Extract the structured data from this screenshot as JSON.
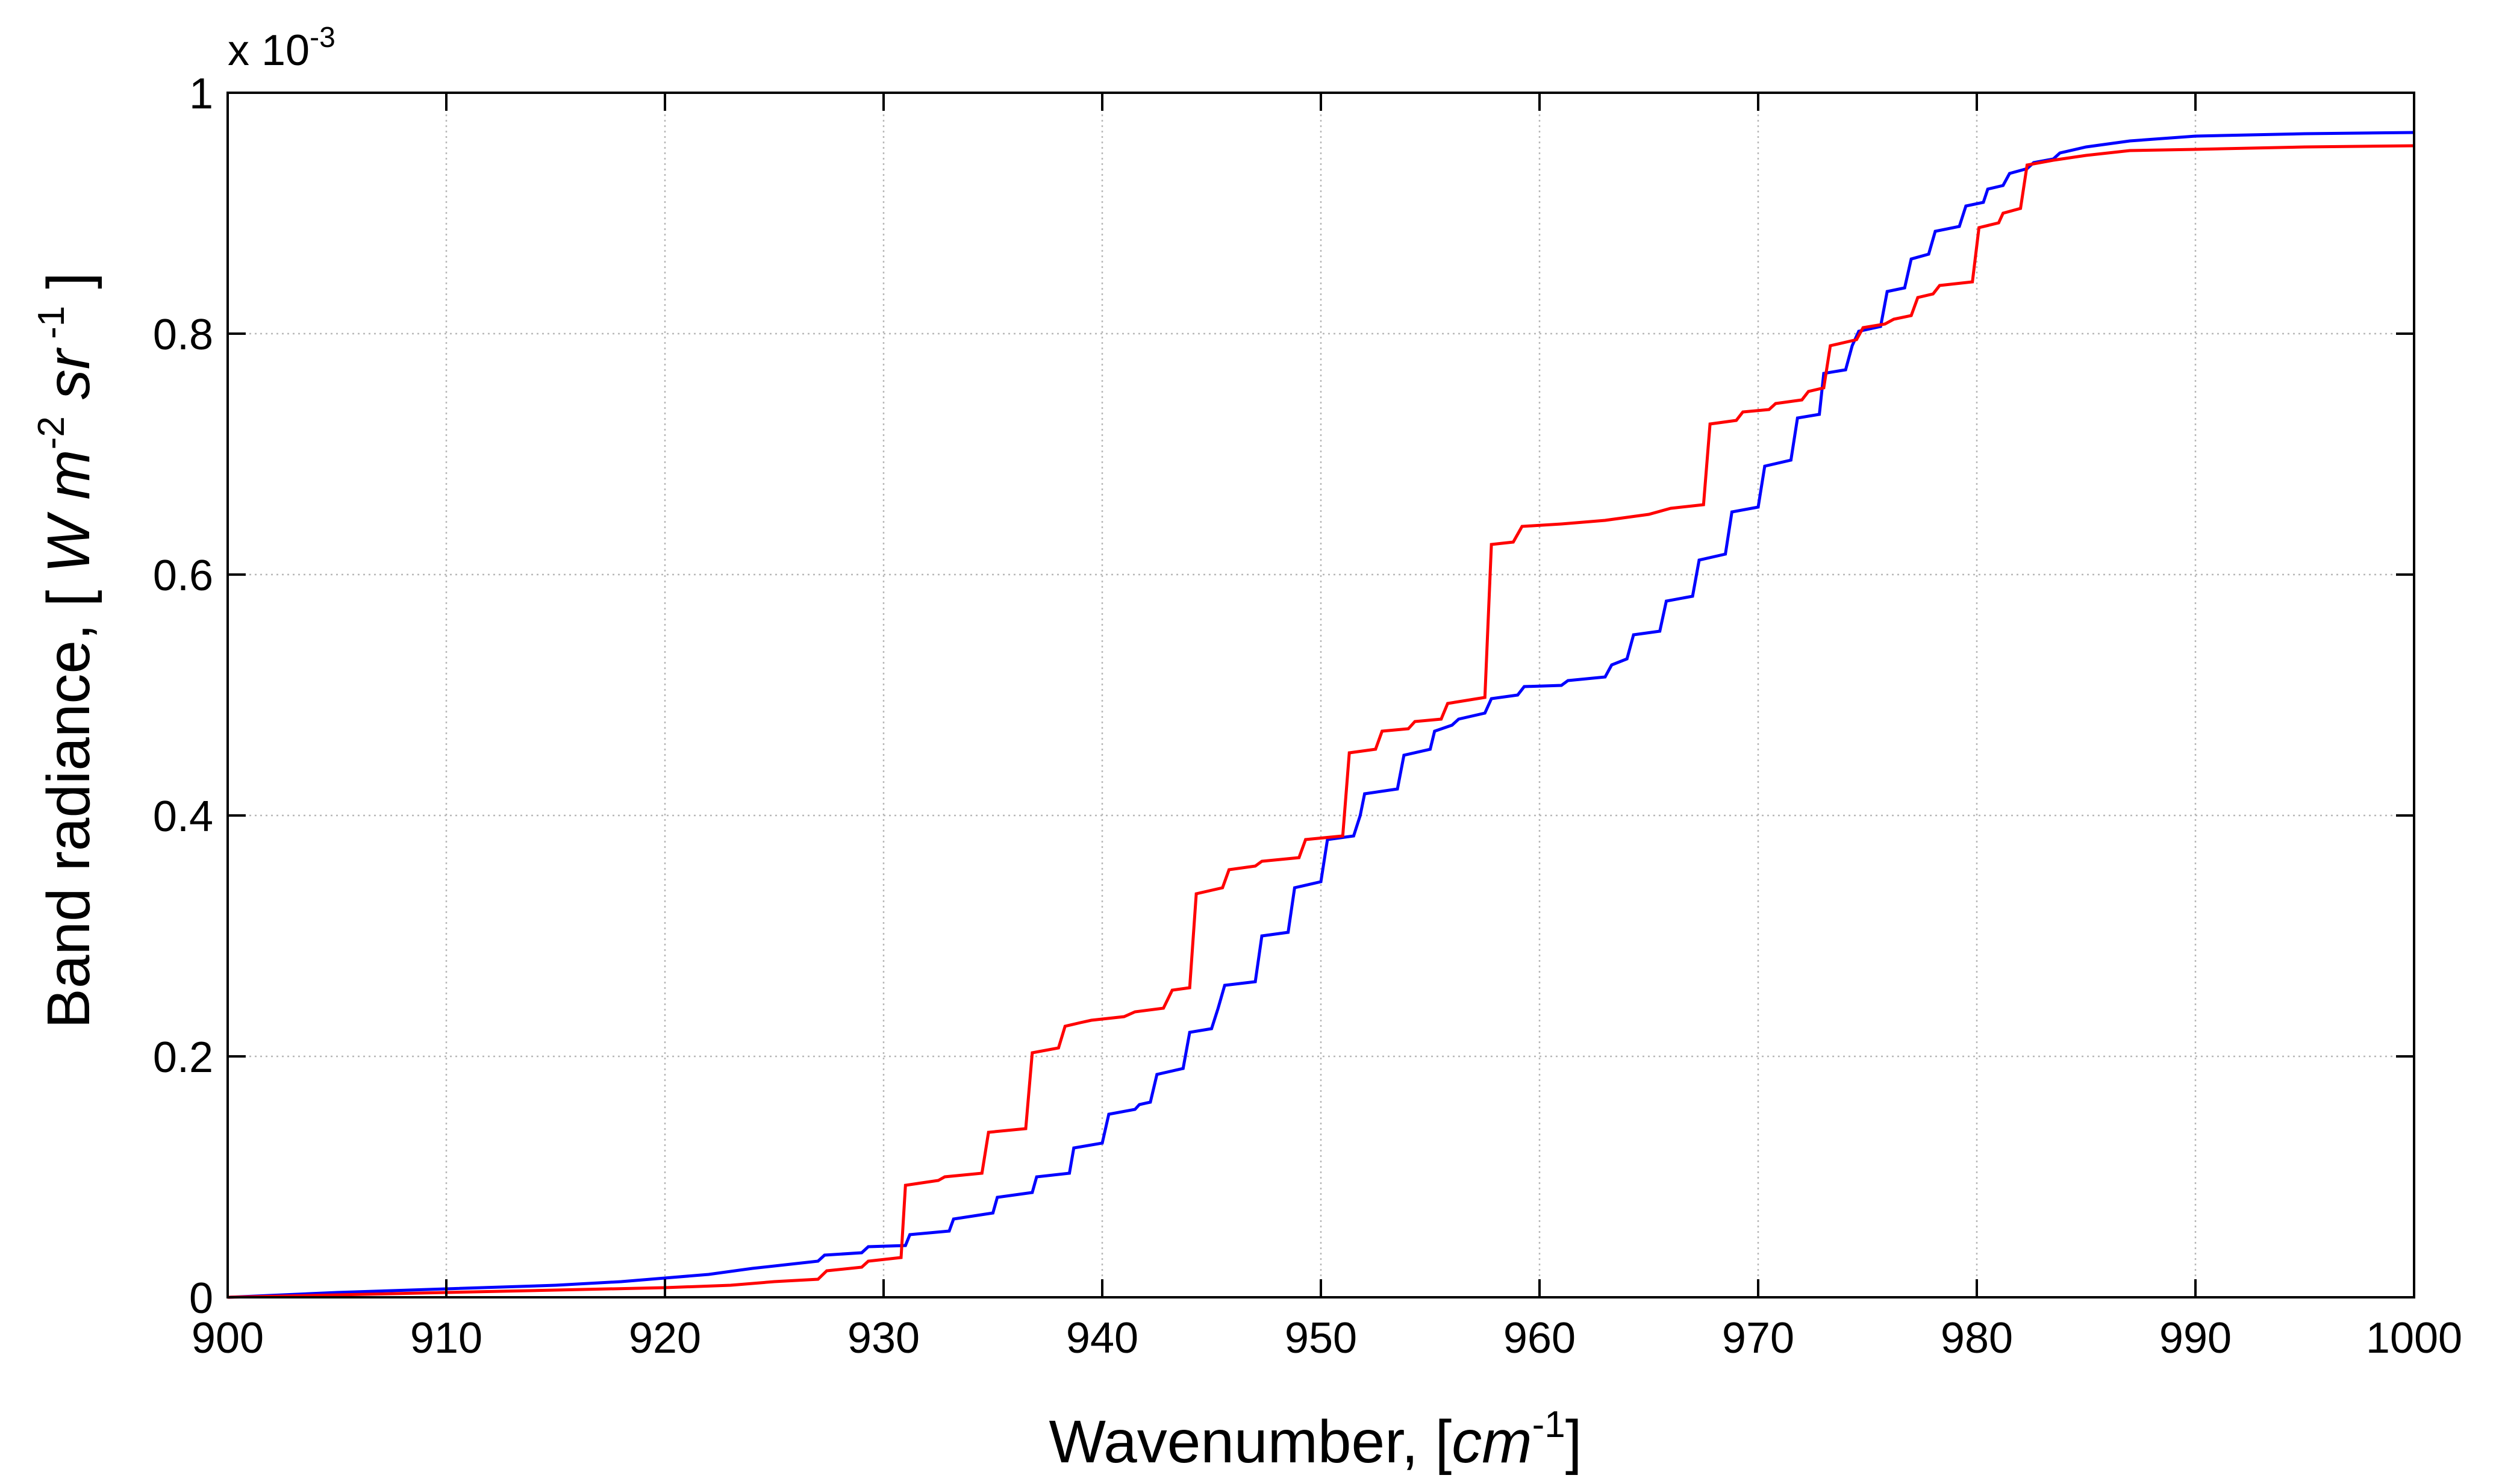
{
  "chart_data": {
    "type": "line",
    "title": "",
    "xlabel": {
      "prefix": "Wavenumber, [",
      "unit": "cm",
      "unit_exp": "-1",
      "suffix": "]"
    },
    "ylabel": {
      "prefix": "Band radiance, [ ",
      "unit1": "W",
      "unit2": "m",
      "unit2_exp": "-2",
      "unit3": "sr",
      "unit3_exp": "-1",
      "suffix": " ]"
    },
    "y_multiplier": {
      "prefix": "x 10",
      "exp": "-3"
    },
    "xlim": [
      900,
      1000
    ],
    "ylim": [
      0,
      1
    ],
    "xticks": [
      900,
      910,
      920,
      930,
      940,
      950,
      960,
      970,
      980,
      990,
      1000
    ],
    "xtick_labels": [
      "900",
      "910",
      "920",
      "930",
      "940",
      "950",
      "960",
      "970",
      "980",
      "990",
      "1000"
    ],
    "yticks": [
      0,
      0.2,
      0.4,
      0.6,
      0.8,
      1
    ],
    "ytick_labels": [
      "0",
      "0.2",
      "0.4",
      "0.6",
      "0.8",
      "1"
    ],
    "grid": true,
    "series": [
      {
        "color": "#0000ff",
        "points": [
          [
            900,
            0
          ],
          [
            905,
            0.004
          ],
          [
            910,
            0.007
          ],
          [
            915,
            0.01
          ],
          [
            918,
            0.013
          ],
          [
            920,
            0.016
          ],
          [
            922,
            0.019
          ],
          [
            924,
            0.024
          ],
          [
            926,
            0.028
          ],
          [
            927,
            0.03
          ],
          [
            927.3,
            0.035
          ],
          [
            929,
            0.037
          ],
          [
            929.3,
            0.042
          ],
          [
            931,
            0.043
          ],
          [
            931.2,
            0.052
          ],
          [
            933,
            0.055
          ],
          [
            933.2,
            0.065
          ],
          [
            935,
            0.07
          ],
          [
            935.2,
            0.083
          ],
          [
            936.8,
            0.087
          ],
          [
            937,
            0.1
          ],
          [
            938.5,
            0.103
          ],
          [
            938.7,
            0.124
          ],
          [
            940,
            0.128
          ],
          [
            940.3,
            0.152
          ],
          [
            941.5,
            0.156
          ],
          [
            941.7,
            0.16
          ],
          [
            942.2,
            0.162
          ],
          [
            942.5,
            0.185
          ],
          [
            943.7,
            0.19
          ],
          [
            944,
            0.22
          ],
          [
            945,
            0.223
          ],
          [
            945.3,
            0.24
          ],
          [
            945.6,
            0.259
          ],
          [
            947,
            0.262
          ],
          [
            947.3,
            0.3
          ],
          [
            948.5,
            0.303
          ],
          [
            948.8,
            0.34
          ],
          [
            950,
            0.345
          ],
          [
            950.3,
            0.38
          ],
          [
            951.5,
            0.383
          ],
          [
            951.8,
            0.4
          ],
          [
            952,
            0.418
          ],
          [
            953.5,
            0.422
          ],
          [
            953.8,
            0.45
          ],
          [
            955,
            0.455
          ],
          [
            955.2,
            0.47
          ],
          [
            956,
            0.475
          ],
          [
            956.3,
            0.48
          ],
          [
            957.5,
            0.485
          ],
          [
            957.8,
            0.497
          ],
          [
            959,
            0.5
          ],
          [
            959.3,
            0.507
          ],
          [
            961,
            0.508
          ],
          [
            961.3,
            0.512
          ],
          [
            963,
            0.515
          ],
          [
            963.3,
            0.525
          ],
          [
            964,
            0.53
          ],
          [
            964.3,
            0.55
          ],
          [
            965.5,
            0.553
          ],
          [
            965.8,
            0.578
          ],
          [
            967,
            0.582
          ],
          [
            967.3,
            0.612
          ],
          [
            968.5,
            0.617
          ],
          [
            968.8,
            0.652
          ],
          [
            970,
            0.656
          ],
          [
            970.3,
            0.69
          ],
          [
            971.5,
            0.695
          ],
          [
            971.8,
            0.73
          ],
          [
            972.8,
            0.733
          ],
          [
            973,
            0.767
          ],
          [
            974,
            0.77
          ],
          [
            974.3,
            0.79
          ],
          [
            974.6,
            0.802
          ],
          [
            975.6,
            0.806
          ],
          [
            975.9,
            0.835
          ],
          [
            976.7,
            0.838
          ],
          [
            977,
            0.862
          ],
          [
            977.8,
            0.866
          ],
          [
            978.1,
            0.885
          ],
          [
            979.2,
            0.889
          ],
          [
            979.5,
            0.906
          ],
          [
            980.3,
            0.909
          ],
          [
            980.5,
            0.92
          ],
          [
            981.2,
            0.923
          ],
          [
            981.5,
            0.933
          ],
          [
            982.3,
            0.937
          ],
          [
            982.6,
            0.942
          ],
          [
            983.5,
            0.945
          ],
          [
            983.8,
            0.95
          ],
          [
            985,
            0.955
          ],
          [
            987,
            0.96
          ],
          [
            990,
            0.964
          ],
          [
            995,
            0.966
          ],
          [
            1000,
            0.967
          ]
        ]
      },
      {
        "color": "#ff0000",
        "points": [
          [
            900,
            0
          ],
          [
            905,
            0.002
          ],
          [
            910,
            0.004
          ],
          [
            915,
            0.006
          ],
          [
            920,
            0.008
          ],
          [
            923,
            0.01
          ],
          [
            925,
            0.013
          ],
          [
            927,
            0.015
          ],
          [
            927.4,
            0.022
          ],
          [
            929,
            0.025
          ],
          [
            929.3,
            0.03
          ],
          [
            930.8,
            0.033
          ],
          [
            931,
            0.093
          ],
          [
            932.5,
            0.097
          ],
          [
            932.8,
            0.1
          ],
          [
            934.5,
            0.103
          ],
          [
            934.8,
            0.137
          ],
          [
            936.5,
            0.14
          ],
          [
            936.8,
            0.203
          ],
          [
            938,
            0.207
          ],
          [
            938.3,
            0.225
          ],
          [
            939,
            0.228
          ],
          [
            939.5,
            0.23
          ],
          [
            941,
            0.233
          ],
          [
            941.5,
            0.237
          ],
          [
            942.8,
            0.24
          ],
          [
            943.2,
            0.255
          ],
          [
            944,
            0.257
          ],
          [
            944.3,
            0.335
          ],
          [
            945.5,
            0.34
          ],
          [
            945.8,
            0.355
          ],
          [
            947,
            0.358
          ],
          [
            947.3,
            0.362
          ],
          [
            949,
            0.365
          ],
          [
            949.3,
            0.38
          ],
          [
            951,
            0.383
          ],
          [
            951.3,
            0.452
          ],
          [
            952.5,
            0.455
          ],
          [
            952.8,
            0.47
          ],
          [
            954,
            0.472
          ],
          [
            954.3,
            0.478
          ],
          [
            955.5,
            0.48
          ],
          [
            955.8,
            0.493
          ],
          [
            957.5,
            0.498
          ],
          [
            957.8,
            0.625
          ],
          [
            958.8,
            0.627
          ],
          [
            959.2,
            0.64
          ],
          [
            961,
            0.642
          ],
          [
            963,
            0.645
          ],
          [
            965,
            0.65
          ],
          [
            966,
            0.655
          ],
          [
            967.5,
            0.658
          ],
          [
            967.8,
            0.725
          ],
          [
            969,
            0.728
          ],
          [
            969.3,
            0.735
          ],
          [
            970.5,
            0.737
          ],
          [
            970.8,
            0.742
          ],
          [
            972,
            0.745
          ],
          [
            972.3,
            0.752
          ],
          [
            973,
            0.755
          ],
          [
            973.3,
            0.79
          ],
          [
            974.5,
            0.795
          ],
          [
            974.8,
            0.805
          ],
          [
            975.8,
            0.808
          ],
          [
            976.2,
            0.812
          ],
          [
            977,
            0.815
          ],
          [
            977.3,
            0.83
          ],
          [
            978,
            0.833
          ],
          [
            978.3,
            0.84
          ],
          [
            979.8,
            0.843
          ],
          [
            980.1,
            0.888
          ],
          [
            981,
            0.892
          ],
          [
            981.2,
            0.9
          ],
          [
            982,
            0.904
          ],
          [
            982.3,
            0.94
          ],
          [
            983.5,
            0.944
          ],
          [
            985,
            0.948
          ],
          [
            987,
            0.952
          ],
          [
            990,
            0.953
          ],
          [
            995,
            0.955
          ],
          [
            1000,
            0.956
          ]
        ]
      }
    ]
  }
}
